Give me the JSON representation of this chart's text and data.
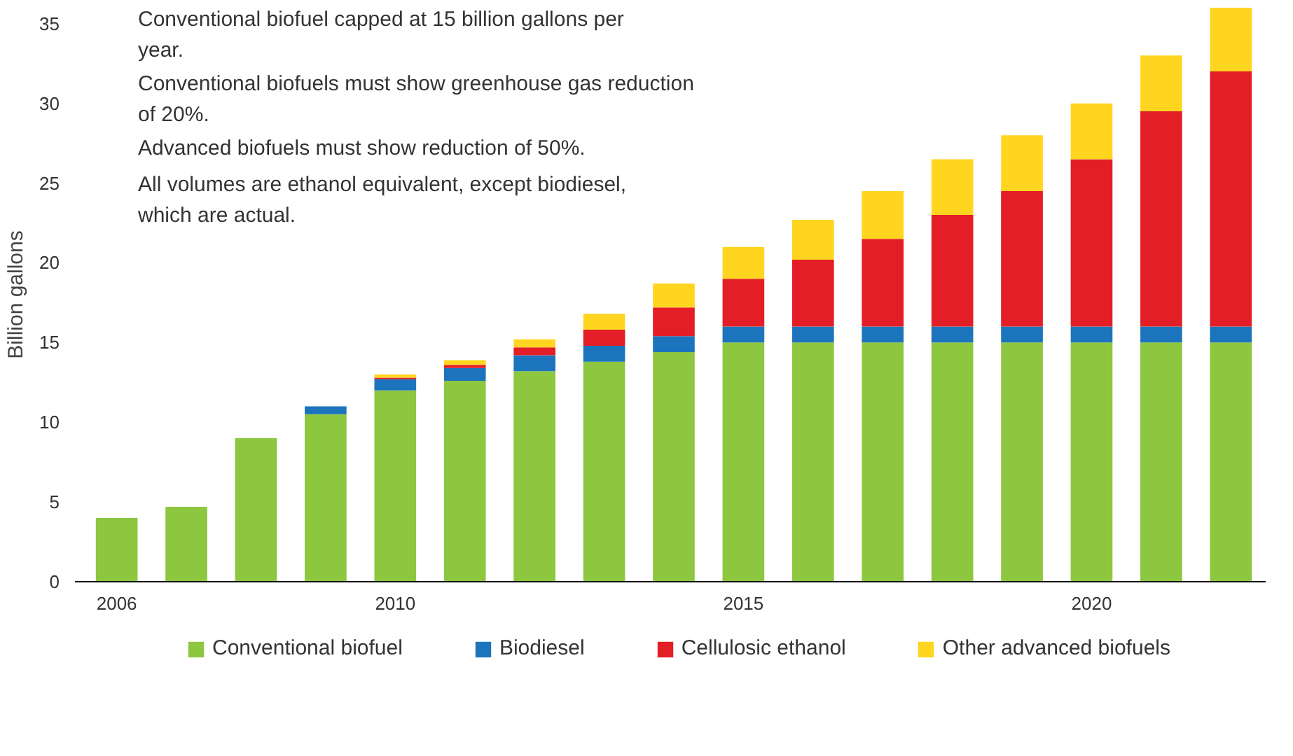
{
  "chart_data": {
    "type": "bar",
    "stacked": true,
    "ylabel": "Billion gallons",
    "x": [
      2006,
      2007,
      2008,
      2009,
      2010,
      2011,
      2012,
      2013,
      2014,
      2015,
      2016,
      2017,
      2018,
      2019,
      2020,
      2021,
      2022
    ],
    "xlim": [
      2005.4,
      2022.5
    ],
    "xticks": [
      2006,
      2010,
      2015,
      2020
    ],
    "ylim": [
      0,
      36
    ],
    "yticks": [
      0,
      5,
      10,
      15,
      20,
      25,
      30,
      35
    ],
    "grid": false,
    "legend": "bottom",
    "series": [
      {
        "name": "Conventional biofuel",
        "color": "#8dc63f",
        "values": [
          4.0,
          4.7,
          9.0,
          10.5,
          12.0,
          12.6,
          13.2,
          13.8,
          14.4,
          15,
          15,
          15,
          15,
          15,
          15,
          15,
          15
        ]
      },
      {
        "name": "Biodiesel",
        "color": "#1c75bc",
        "values": [
          0,
          0,
          0,
          0.5,
          0.7,
          0.8,
          1.0,
          1.0,
          1.0,
          1.0,
          1.0,
          1.0,
          1.0,
          1.0,
          1.0,
          1.0,
          1.0
        ]
      },
      {
        "name": "Cellulosic ethanol",
        "color": "#e41e26",
        "values": [
          0,
          0,
          0,
          0,
          0.1,
          0.2,
          0.5,
          1.0,
          1.8,
          3.0,
          4.2,
          5.5,
          7.0,
          8.5,
          10.5,
          13.5,
          16.0
        ]
      },
      {
        "name": "Other advanced biofuels",
        "color": "#ffd520",
        "values": [
          0,
          0,
          0,
          0,
          0.2,
          0.3,
          0.5,
          1.0,
          1.5,
          2.0,
          2.5,
          3.0,
          3.5,
          3.5,
          3.5,
          3.5,
          4.0
        ]
      }
    ],
    "annotations": [
      "Conventional biofuel capped at 15 billion gallons per year.",
      "Conventional biofuels must show greenhouse gas reduction of 20%.",
      "Advanced biofuels must show reduction of 50%.",
      "All volumes are ethanol equivalent, except biodiesel, which are actual."
    ]
  }
}
